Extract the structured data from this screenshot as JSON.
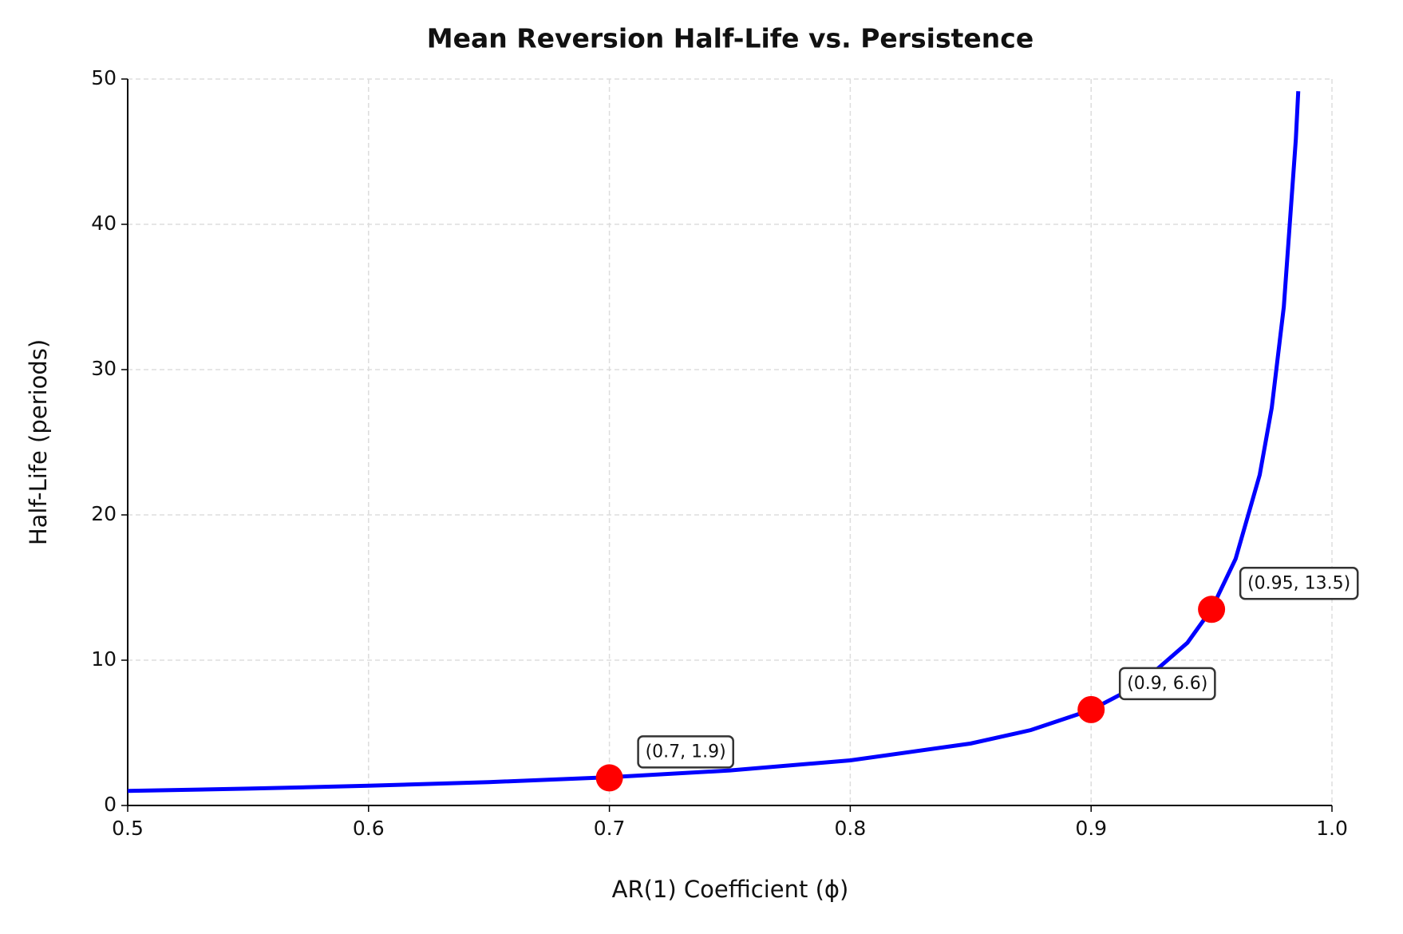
{
  "chart_data": {
    "type": "line",
    "title": "Mean Reversion Half-Life vs. Persistence",
    "x_label": "AR(1) Coefficient (ϕ)",
    "y_label": "Half-Life (periods)",
    "xlim": [
      0.5,
      1
    ],
    "ylim": [
      0,
      50
    ],
    "xticks": [
      0.5,
      0.6,
      0.7,
      0.8,
      0.9,
      {
        "value": 1,
        "label": "1.0"
      }
    ],
    "yticks": [
      0,
      10,
      20,
      30,
      40,
      50
    ],
    "grid": true,
    "line": {
      "color": "#0000ff",
      "x": [
        0.5,
        0.55,
        0.6,
        0.65,
        0.7,
        0.75,
        0.8,
        0.85,
        0.875,
        0.9,
        0.92,
        0.94,
        0.95,
        0.96,
        0.97,
        0.975,
        0.98,
        0.985,
        0.986
      ],
      "values": [
        1.0,
        1.159,
        1.357,
        1.609,
        1.943,
        2.409,
        3.106,
        4.265,
        5.191,
        6.579,
        8.313,
        11.202,
        13.513,
        16.98,
        22.757,
        27.378,
        34.31,
        45.862,
        49.16
      ]
    },
    "points": {
      "color": "#ff0000",
      "x": [
        0.7,
        0.9,
        0.95
      ],
      "values": [
        1.9,
        6.6,
        13.5
      ],
      "value_labels": [
        "(0.7, 1.9)",
        "(0.9, 6.6)",
        "(0.95, 13.5)"
      ]
    }
  }
}
